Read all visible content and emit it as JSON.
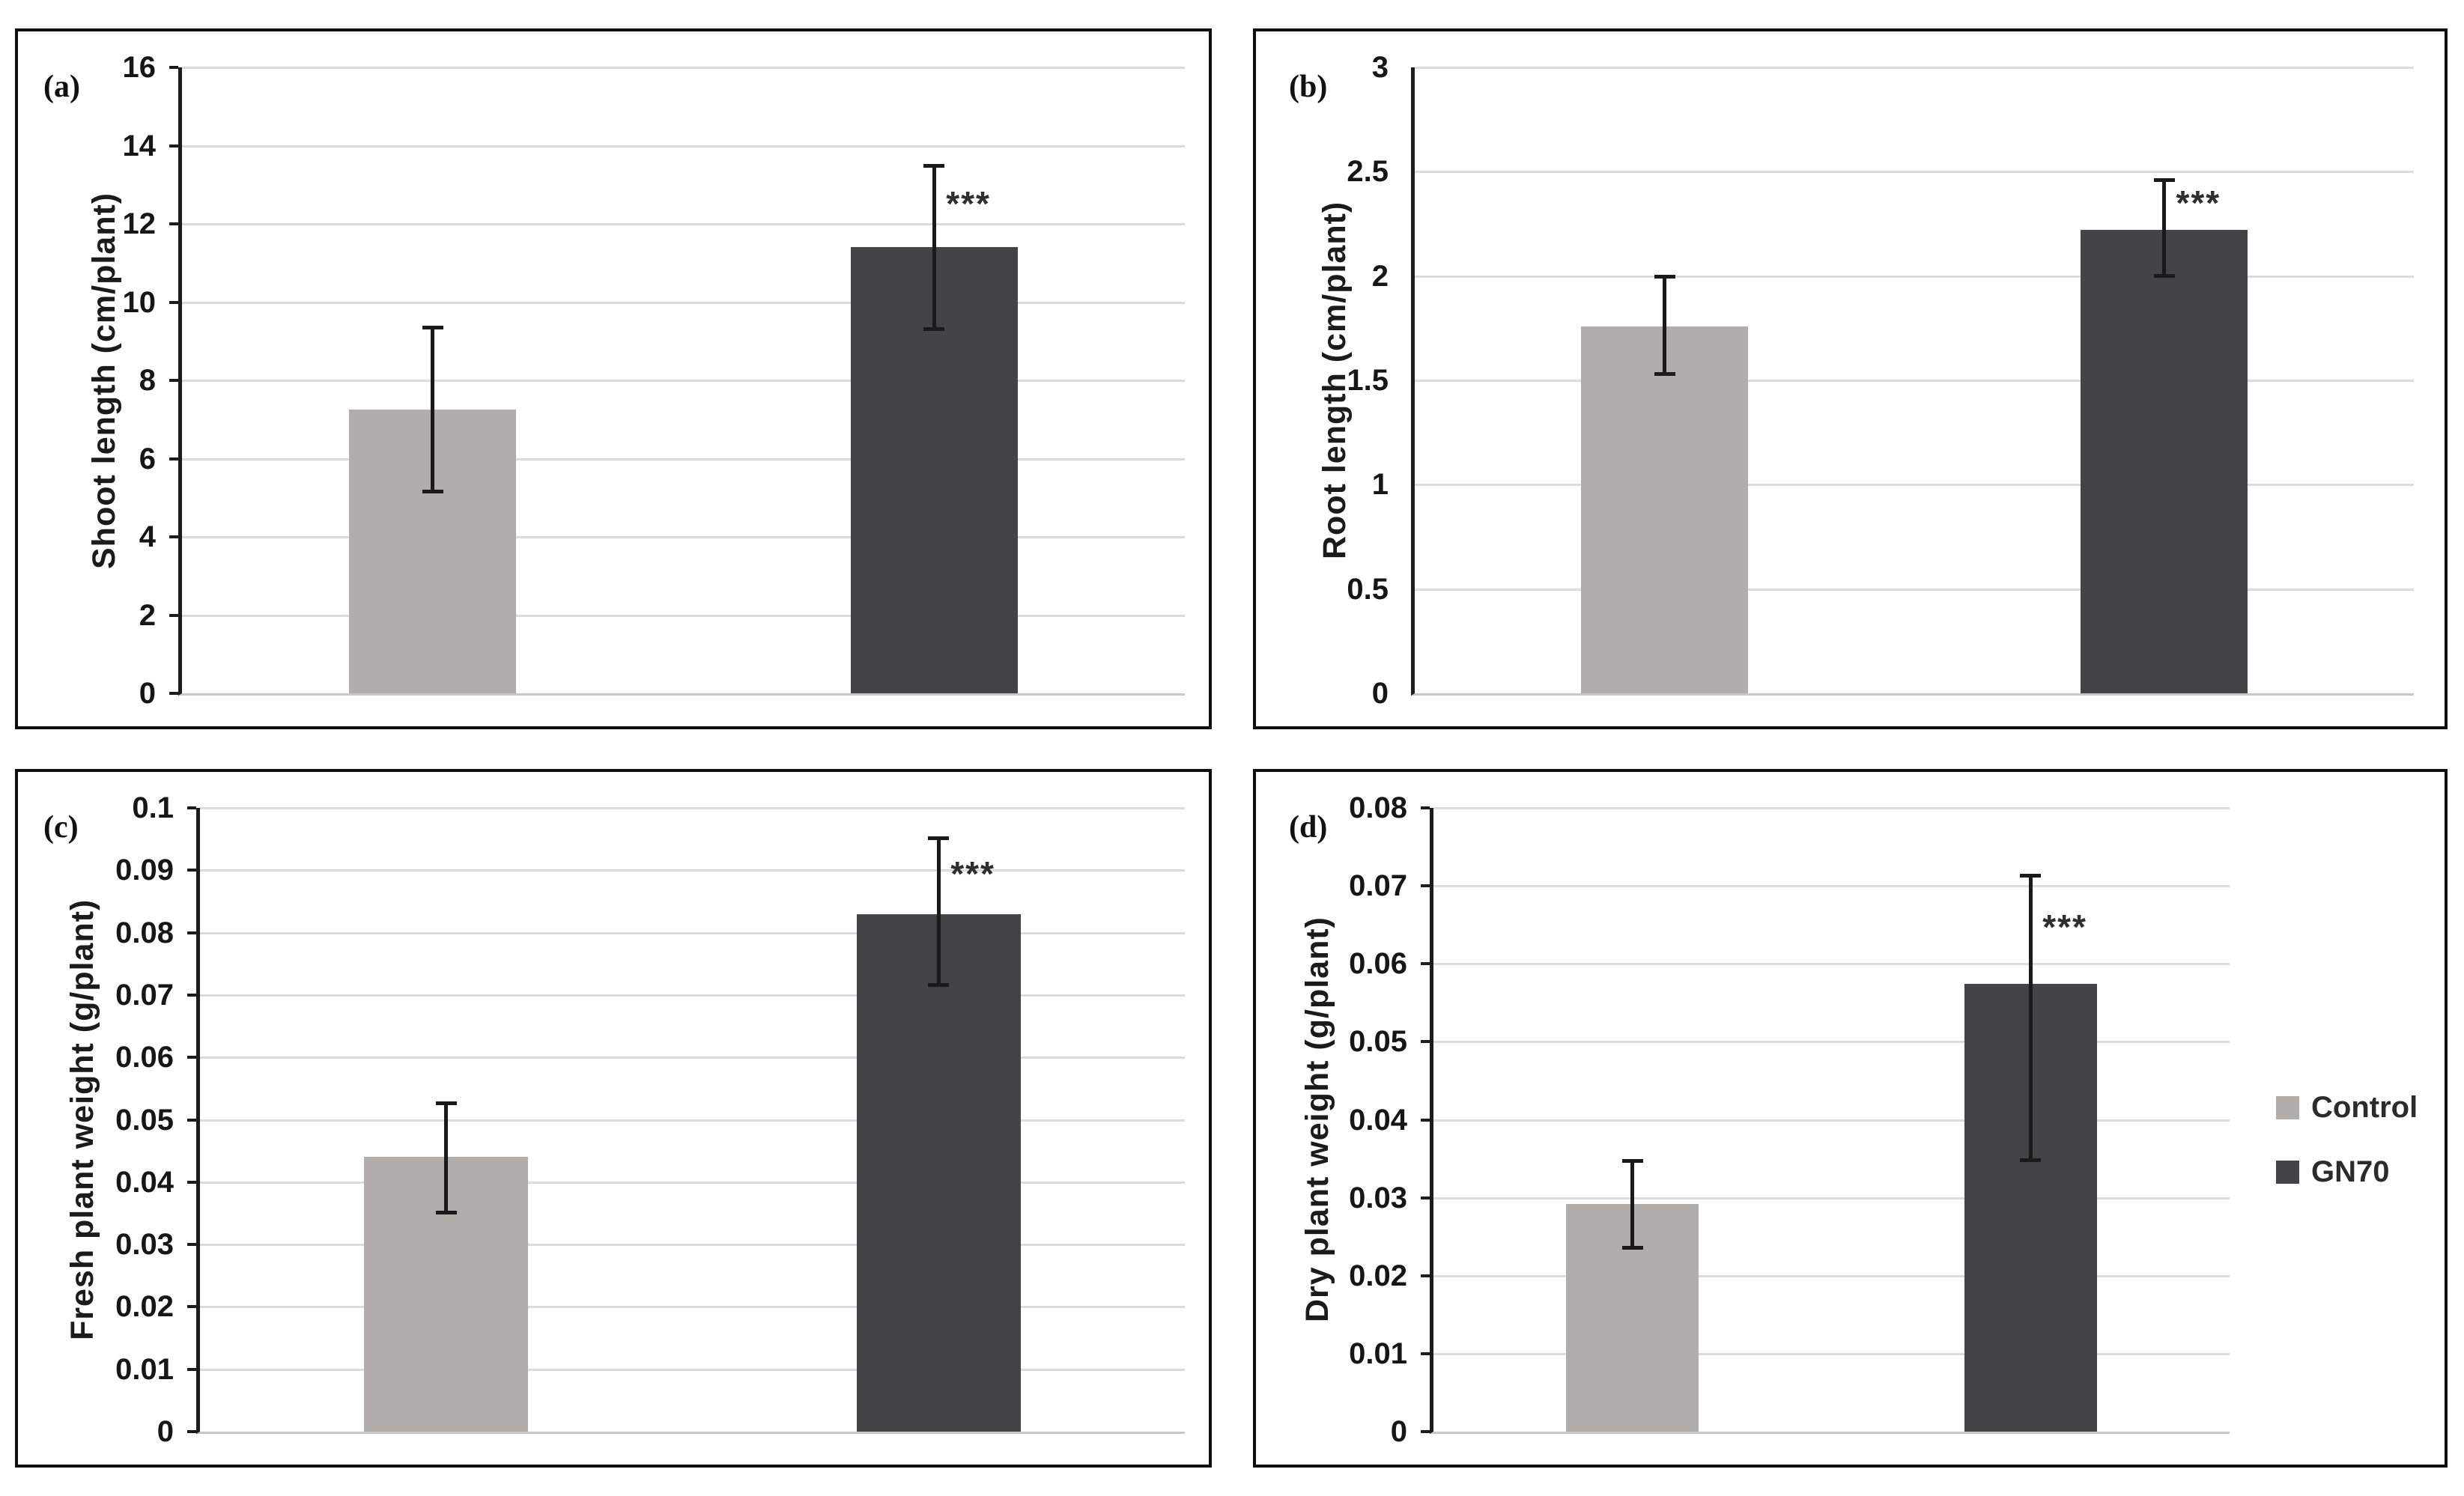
{
  "legend": {
    "position": "right-of-plot-in-panel-d",
    "items": [
      {
        "label": "Control",
        "color": "#b1adaa"
      },
      {
        "label": "GN70",
        "color": "#444446"
      }
    ]
  },
  "annotations": {
    "significance_marker": "***"
  },
  "chart_data": [
    {
      "id": "a",
      "type": "bar",
      "letter": "(a)",
      "ylabel": "Shoot length (cm/plant)",
      "categories": [
        "Control",
        "GN70"
      ],
      "values": [
        7.25,
        11.4
      ],
      "error_low": [
        5.15,
        9.3
      ],
      "error_high": [
        9.35,
        13.5
      ],
      "significance": [
        "",
        "***"
      ],
      "ylim": [
        0,
        16
      ],
      "yticks": [
        "0",
        "2",
        "4",
        "6",
        "8",
        "10",
        "12",
        "14",
        "16"
      ],
      "grid": true,
      "legend_shown": false
    },
    {
      "id": "b",
      "type": "bar",
      "letter": "(b)",
      "ylabel": "Root length (cm/plant)",
      "categories": [
        "Control",
        "GN70"
      ],
      "values": [
        1.76,
        2.22
      ],
      "error_low": [
        1.53,
        2.0
      ],
      "error_high": [
        2.0,
        2.46
      ],
      "significance": [
        "",
        "***"
      ],
      "ylim": [
        0,
        3
      ],
      "yticks": [
        "0",
        "0.5",
        "1",
        "1.5",
        "2",
        "2.5",
        "3"
      ],
      "grid": true,
      "legend_shown": false
    },
    {
      "id": "c",
      "type": "bar",
      "letter": "(c)",
      "ylabel": "Fresh plant weight (g/plant)",
      "categories": [
        "Control",
        "GN70"
      ],
      "values": [
        0.044,
        0.083
      ],
      "error_low": [
        0.035,
        0.0715
      ],
      "error_high": [
        0.0527,
        0.0952
      ],
      "significance": [
        "",
        "***"
      ],
      "ylim": [
        0,
        0.1
      ],
      "yticks": [
        "0",
        "0.01",
        "0.02",
        "0.03",
        "0.04",
        "0.05",
        "0.06",
        "0.07",
        "0.08",
        "0.09",
        "0.1"
      ],
      "grid": true,
      "legend_shown": false
    },
    {
      "id": "d",
      "type": "bar",
      "letter": "(d)",
      "ylabel": "Dry plant weight (g/plant)",
      "categories": [
        "Control",
        "GN70"
      ],
      "values": [
        0.0292,
        0.0574
      ],
      "error_low": [
        0.0235,
        0.0348
      ],
      "error_high": [
        0.0348,
        0.0714
      ],
      "significance": [
        "",
        "***"
      ],
      "ylim": [
        0,
        0.08
      ],
      "yticks": [
        "0",
        "0.01",
        "0.02",
        "0.03",
        "0.04",
        "0.05",
        "0.06",
        "0.07",
        "0.08"
      ],
      "grid": true,
      "legend_shown": true
    }
  ]
}
